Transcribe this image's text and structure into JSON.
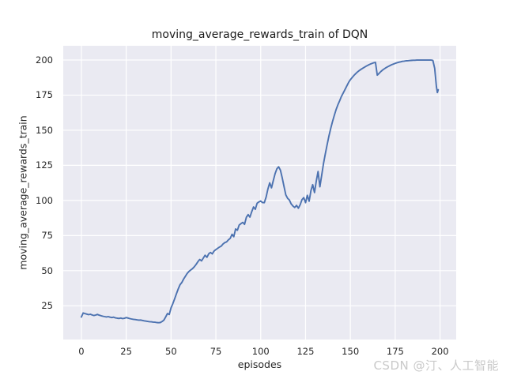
{
  "chart_data": {
    "type": "line",
    "title": "moving_average_rewards_train of DQN",
    "xlabel": "episodes",
    "ylabel": "moving_average_rewards_train",
    "x_ticks": [
      0,
      25,
      50,
      75,
      100,
      125,
      150,
      175,
      200
    ],
    "y_ticks": [
      25,
      50,
      75,
      100,
      125,
      150,
      175,
      200
    ],
    "xlim": [
      -10.1,
      209.0
    ],
    "ylim": [
      1.0,
      210.1
    ],
    "grid": true,
    "legend_position": "none",
    "series": [
      {
        "name": "moving_average_rewards_train",
        "color": "#4c72b0",
        "points": [
          [
            0,
            17.0
          ],
          [
            1,
            19.9
          ],
          [
            2,
            19.5
          ],
          [
            3,
            19.1
          ],
          [
            4,
            18.7
          ],
          [
            5,
            19.0
          ],
          [
            6,
            18.5
          ],
          [
            7,
            18.1
          ],
          [
            8,
            18.4
          ],
          [
            9,
            18.9
          ],
          [
            10,
            18.3
          ],
          [
            11,
            17.9
          ],
          [
            12,
            17.6
          ],
          [
            13,
            17.3
          ],
          [
            14,
            17.1
          ],
          [
            15,
            17.3
          ],
          [
            16,
            16.9
          ],
          [
            17,
            16.6
          ],
          [
            18,
            16.9
          ],
          [
            19,
            16.4
          ],
          [
            20,
            16.2
          ],
          [
            21,
            16.0
          ],
          [
            22,
            16.3
          ],
          [
            23,
            15.9
          ],
          [
            24,
            16.1
          ],
          [
            25,
            16.6
          ],
          [
            26,
            16.3
          ],
          [
            27,
            15.9
          ],
          [
            28,
            15.6
          ],
          [
            29,
            15.4
          ],
          [
            30,
            15.2
          ],
          [
            31,
            15.0
          ],
          [
            32,
            14.8
          ],
          [
            33,
            14.9
          ],
          [
            34,
            14.6
          ],
          [
            35,
            14.3
          ],
          [
            36,
            14.1
          ],
          [
            37,
            13.9
          ],
          [
            38,
            13.7
          ],
          [
            39,
            13.6
          ],
          [
            40,
            13.4
          ],
          [
            41,
            13.3
          ],
          [
            42,
            13.1
          ],
          [
            43,
            13.0
          ],
          [
            44,
            13.1
          ],
          [
            45,
            13.8
          ],
          [
            46,
            14.8
          ],
          [
            47,
            17.0
          ],
          [
            48,
            19.5
          ],
          [
            49,
            18.8
          ],
          [
            50,
            23.5
          ],
          [
            51,
            26.5
          ],
          [
            52,
            30.0
          ],
          [
            53,
            33.5
          ],
          [
            54,
            37.0
          ],
          [
            55,
            40.0
          ],
          [
            56,
            41.5
          ],
          [
            57,
            44.0
          ],
          [
            58,
            46.0
          ],
          [
            59,
            48.0
          ],
          [
            60,
            49.5
          ],
          [
            61,
            50.5
          ],
          [
            62,
            51.5
          ],
          [
            63,
            52.8
          ],
          [
            64,
            54.5
          ],
          [
            65,
            56.5
          ],
          [
            66,
            58.0
          ],
          [
            67,
            57.0
          ],
          [
            68,
            59.0
          ],
          [
            69,
            61.0
          ],
          [
            70,
            59.5
          ],
          [
            71,
            62.0
          ],
          [
            72,
            63.0
          ],
          [
            73,
            62.0
          ],
          [
            74,
            64.0
          ],
          [
            75,
            65.0
          ],
          [
            76,
            65.9
          ],
          [
            77,
            66.8
          ],
          [
            78,
            67.5
          ],
          [
            79,
            69.0
          ],
          [
            80,
            70.0
          ],
          [
            81,
            70.5
          ],
          [
            82,
            72.0
          ],
          [
            83,
            73.0
          ],
          [
            84,
            75.9
          ],
          [
            85,
            74.2
          ],
          [
            86,
            79.7
          ],
          [
            87,
            78.8
          ],
          [
            88,
            82.5
          ],
          [
            89,
            83.5
          ],
          [
            90,
            84.4
          ],
          [
            91,
            83.0
          ],
          [
            92,
            88.0
          ],
          [
            93,
            89.9
          ],
          [
            94,
            88.1
          ],
          [
            95,
            92.0
          ],
          [
            96,
            95.4
          ],
          [
            97,
            93.7
          ],
          [
            98,
            98.0
          ],
          [
            99,
            99.0
          ],
          [
            100,
            99.6
          ],
          [
            101,
            98.5
          ],
          [
            102,
            98.4
          ],
          [
            103,
            102.4
          ],
          [
            104,
            108.0
          ],
          [
            105,
            112.5
          ],
          [
            106,
            109.0
          ],
          [
            107,
            114.0
          ],
          [
            108,
            119.0
          ],
          [
            109,
            122.5
          ],
          [
            110,
            124.0
          ],
          [
            111,
            121.5
          ],
          [
            112,
            116.0
          ],
          [
            113,
            110.0
          ],
          [
            114,
            104.0
          ],
          [
            115,
            101.5
          ],
          [
            116,
            100.3
          ],
          [
            117,
            97.5
          ],
          [
            118,
            96.0
          ],
          [
            119,
            95.0
          ],
          [
            120,
            96.5
          ],
          [
            121,
            94.5
          ],
          [
            122,
            97.0
          ],
          [
            123,
            100.5
          ],
          [
            124,
            102.0
          ],
          [
            125,
            98.4
          ],
          [
            126,
            103.7
          ],
          [
            127,
            99.4
          ],
          [
            128,
            107.0
          ],
          [
            129,
            111.2
          ],
          [
            130,
            105.6
          ],
          [
            131,
            114.0
          ],
          [
            132,
            120.6
          ],
          [
            133,
            109.7
          ],
          [
            134,
            118.0
          ],
          [
            135,
            126.0
          ],
          [
            136,
            133.0
          ],
          [
            137,
            139.5
          ],
          [
            138,
            145.5
          ],
          [
            139,
            151.0
          ],
          [
            140,
            156.0
          ],
          [
            141,
            160.5
          ],
          [
            142,
            164.5
          ],
          [
            143,
            168.0
          ],
          [
            144,
            171.0
          ],
          [
            145,
            174.0
          ],
          [
            146,
            176.5
          ],
          [
            147,
            179.0
          ],
          [
            148,
            181.5
          ],
          [
            149,
            184.0
          ],
          [
            150,
            186.0
          ],
          [
            151,
            187.5
          ],
          [
            152,
            189.0
          ],
          [
            153,
            190.3
          ],
          [
            154,
            191.5
          ],
          [
            155,
            192.5
          ],
          [
            156,
            193.4
          ],
          [
            157,
            194.2
          ],
          [
            158,
            195.0
          ],
          [
            159,
            195.7
          ],
          [
            160,
            196.4
          ],
          [
            161,
            197.0
          ],
          [
            162,
            197.5
          ],
          [
            163,
            198.0
          ],
          [
            164,
            198.3
          ],
          [
            165,
            189.2
          ],
          [
            166,
            190.5
          ],
          [
            167,
            191.8
          ],
          [
            168,
            192.9
          ],
          [
            169,
            193.8
          ],
          [
            170,
            194.6
          ],
          [
            171,
            195.3
          ],
          [
            172,
            196.0
          ],
          [
            173,
            196.6
          ],
          [
            174,
            197.1
          ],
          [
            175,
            197.6
          ],
          [
            176,
            198.0
          ],
          [
            177,
            198.4
          ],
          [
            178,
            198.7
          ],
          [
            179,
            199.0
          ],
          [
            180,
            199.2
          ],
          [
            181,
            199.4
          ],
          [
            182,
            199.5
          ],
          [
            183,
            199.6
          ],
          [
            184,
            199.7
          ],
          [
            185,
            199.8
          ],
          [
            186,
            199.8
          ],
          [
            187,
            199.9
          ],
          [
            188,
            199.9
          ],
          [
            189,
            199.9
          ],
          [
            190,
            199.9
          ],
          [
            191,
            199.9
          ],
          [
            192,
            199.9
          ],
          [
            193,
            199.9
          ],
          [
            194,
            199.9
          ],
          [
            195,
            199.9
          ],
          [
            196,
            199.7
          ],
          [
            197,
            194.0
          ],
          [
            198,
            181.0
          ],
          [
            198.5,
            176.8
          ],
          [
            199,
            178.8
          ]
        ]
      }
    ]
  },
  "watermark": "CSDN @汀、人工智能",
  "colors": {
    "figure_bg": "#ffffff",
    "axes_bg": "#eaeaf2",
    "grid": "#ffffff",
    "line": "#4c72b0",
    "text": "#262626",
    "title_text": "#1a1a1a",
    "watermark_text": "#c9c9c9"
  }
}
